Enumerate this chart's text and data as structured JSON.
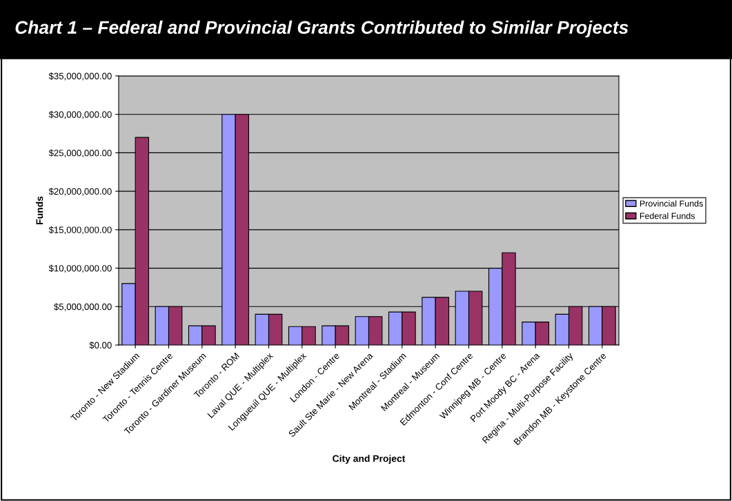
{
  "chart_data": {
    "type": "bar",
    "title": "Chart 1 – Federal and Provincial Grants Contributed to Similar Projects",
    "xlabel": "City and Project",
    "ylabel": "Funds",
    "categories": [
      "Toronto - New Stadium",
      "Toronto - Tennis Centre",
      "Toronto - Gardiner Museum",
      "Toronto - ROM",
      "Laval QUE - Multiplex",
      "Longueuil QUE - Multiplex",
      "London - Centre",
      "Sault Ste Marie - New Arena",
      "Montreal - Stadium",
      "Montreal - Museum",
      "Edmonton - Conf Centre",
      "Winnipeg MB - Centre",
      "Port Moody BC - Arena",
      "Regina - Multi-Purpose Facility",
      "Brandon MB - Keystone Centre"
    ],
    "series": [
      {
        "name": "Provincial Funds",
        "color": "#9999ff",
        "values": [
          8000000,
          5000000,
          2500000,
          30000000,
          4000000,
          2400000,
          2500000,
          3700000,
          4300000,
          6200000,
          7000000,
          10000000,
          3000000,
          4000000,
          5000000
        ]
      },
      {
        "name": "Federal Funds",
        "color": "#993366",
        "values": [
          27000000,
          5000000,
          2500000,
          30000000,
          4000000,
          2400000,
          2500000,
          3700000,
          4300000,
          6200000,
          7000000,
          12000000,
          3000000,
          5000000,
          5000000
        ]
      }
    ],
    "ylim": [
      0,
      35000000
    ],
    "yticks": [
      {
        "value": 0,
        "label": "$0.00"
      },
      {
        "value": 5000000,
        "label": "$5,000,000.00"
      },
      {
        "value": 10000000,
        "label": "$10,000,000.00"
      },
      {
        "value": 15000000,
        "label": "$15,000,000.00"
      },
      {
        "value": 20000000,
        "label": "$20,000,000.00"
      },
      {
        "value": 25000000,
        "label": "$25,000,000.00"
      },
      {
        "value": 30000000,
        "label": "$30,000,000.00"
      },
      {
        "value": 35000000,
        "label": "$35,000,000.00"
      }
    ],
    "grid": "y",
    "legend": "right"
  }
}
